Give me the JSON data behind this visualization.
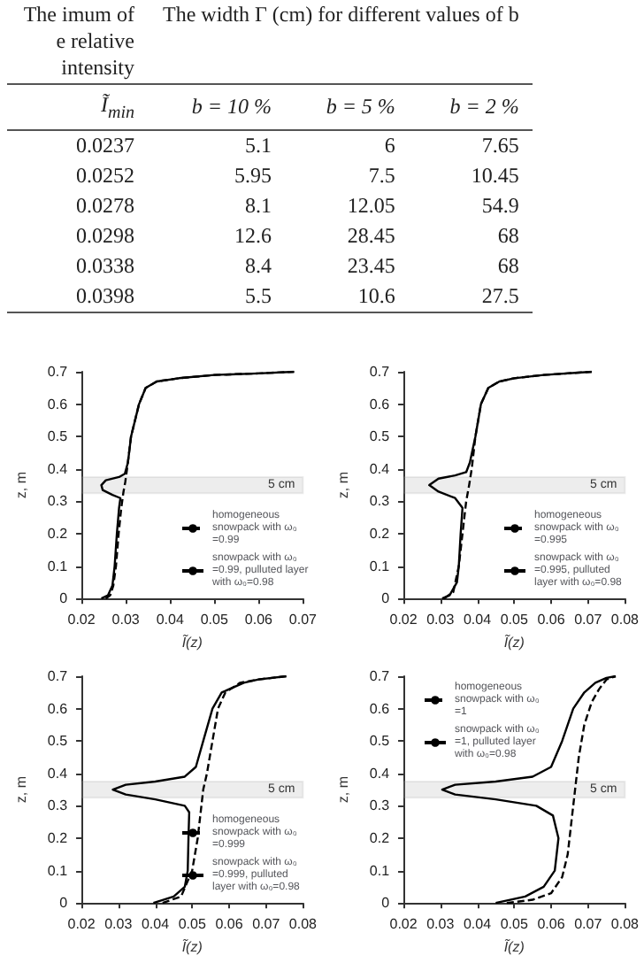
{
  "chart_data": [
    {
      "type": "other",
      "categories": [
        "Ĩ$_{min}$",
        "b = 10 %",
        "b = 5 %",
        "b = 2 %"
      ],
      "annotations": [
        "The imum of e relative intensity",
        "The width Γ (cm) for different values of b",
        "0.0237",
        "5.1",
        "6",
        "7.65",
        "0.0252",
        "5.95",
        "7.5",
        "10.45",
        "0.0278",
        "8.1",
        "12.05",
        "54.9",
        "0.0298",
        "12.6",
        "28.45",
        "68",
        "0.0338",
        "8.4",
        "23.45",
        "68",
        "0.0398",
        "5.5",
        "10.6",
        "27.5"
      ]
    },
    {
      "type": "line",
      "xlabel": "Ĩ(z)",
      "ylabel": "z, m",
      "xlim": [
        0.02,
        0.07
      ],
      "xticks": [
        0.02,
        0.03,
        0.04,
        0.05,
        0.06,
        0.07
      ],
      "ylim": [
        0,
        0.7
      ],
      "yticks": [
        0,
        0.1,
        0.2,
        0.3,
        0.4,
        0.5,
        0.6,
        0.7
      ],
      "legend": "bottom right",
      "marker": "none",
      "bands": [
        {
          "axis": "y",
          "from": 0.325,
          "to": 0.375,
          "label": "5 cm",
          "color": "#999999"
        }
      ],
      "series": [
        {
          "name": "homogeneous snowpack with ω₀=0.99",
          "color": "#000000",
          "line_style": "dashed",
          "x": [
            0.0255,
            0.0265,
            0.0272,
            0.0278,
            0.0284,
            0.029,
            0.0295,
            0.0299,
            0.0303,
            0.0312,
            0.033,
            0.0345,
            0.037,
            0.042,
            0.05,
            0.06,
            0.068
          ],
          "values": [
            0,
            0.01,
            0.04,
            0.1,
            0.2,
            0.28,
            0.33,
            0.36,
            0.4,
            0.5,
            0.6,
            0.65,
            0.67,
            0.68,
            0.69,
            0.695,
            0.7
          ]
        },
        {
          "name": "snowpack with ω₀=0.99, pulluted layer with ω₀=0.98",
          "color": "#000000",
          "line_style": "solid",
          "x": [
            0.0245,
            0.026,
            0.027,
            0.0275,
            0.028,
            0.0285,
            0.0288,
            0.027,
            0.0248,
            0.0245,
            0.0255,
            0.0285,
            0.0298,
            0.0305,
            0.0312,
            0.033,
            0.0345,
            0.037,
            0.042,
            0.05,
            0.06,
            0.068
          ],
          "values": [
            0,
            0.01,
            0.04,
            0.1,
            0.2,
            0.28,
            0.31,
            0.32,
            0.335,
            0.35,
            0.365,
            0.375,
            0.385,
            0.42,
            0.5,
            0.6,
            0.65,
            0.67,
            0.68,
            0.69,
            0.695,
            0.7
          ]
        }
      ]
    },
    {
      "type": "line",
      "xlabel": "Ĩ(z)",
      "ylabel": "z, m",
      "xlim": [
        0.02,
        0.08
      ],
      "xticks": [
        0.02,
        0.03,
        0.04,
        0.05,
        0.06,
        0.07,
        0.08
      ],
      "ylim": [
        0,
        0.7
      ],
      "yticks": [
        0,
        0.1,
        0.2,
        0.3,
        0.4,
        0.5,
        0.6,
        0.7
      ],
      "legend": "bottom right",
      "marker": "none",
      "bands": [
        {
          "axis": "y",
          "from": 0.325,
          "to": 0.375,
          "label": "5 cm",
          "color": "#999999"
        }
      ],
      "series": [
        {
          "name": "homogeneous snowpack with ω₀=0.995",
          "color": "#000000",
          "line_style": "dashed",
          "x": [
            0.031,
            0.0335,
            0.035,
            0.036,
            0.037,
            0.0378,
            0.0385,
            0.0395,
            0.041,
            0.043,
            0.046,
            0.05,
            0.058,
            0.071
          ],
          "values": [
            0,
            0.02,
            0.1,
            0.2,
            0.3,
            0.35,
            0.4,
            0.5,
            0.6,
            0.65,
            0.67,
            0.68,
            0.69,
            0.7
          ]
        },
        {
          "name": "snowpack with ω₀=0.995, pulluted layer with ω₀=0.98",
          "color": "#000000",
          "line_style": "solid",
          "x": [
            0.0305,
            0.0325,
            0.0345,
            0.035,
            0.0355,
            0.036,
            0.034,
            0.0295,
            0.027,
            0.0295,
            0.034,
            0.037,
            0.038,
            0.0395,
            0.041,
            0.043,
            0.046,
            0.05,
            0.058,
            0.071
          ],
          "values": [
            0,
            0.01,
            0.05,
            0.1,
            0.2,
            0.28,
            0.31,
            0.33,
            0.35,
            0.37,
            0.38,
            0.39,
            0.42,
            0.5,
            0.6,
            0.65,
            0.67,
            0.68,
            0.69,
            0.7
          ]
        }
      ]
    },
    {
      "type": "line",
      "xlabel": "Ĩ(z)",
      "ylabel": "z, m",
      "xlim": [
        0.02,
        0.08
      ],
      "xticks": [
        0.02,
        0.03,
        0.04,
        0.05,
        0.06,
        0.07,
        0.08
      ],
      "ylim": [
        0,
        0.7
      ],
      "yticks": [
        0,
        0.1,
        0.2,
        0.3,
        0.4,
        0.5,
        0.6,
        0.7
      ],
      "legend": "bottom right",
      "marker": "none",
      "bands": [
        {
          "axis": "y",
          "from": 0.325,
          "to": 0.375,
          "label": "5 cm",
          "color": "#999999"
        }
      ],
      "series": [
        {
          "name": "homogeneous snowpack with ω₀=0.999",
          "color": "#000000",
          "line_style": "dashed",
          "x": [
            0.042,
            0.047,
            0.05,
            0.0515,
            0.0525,
            0.053,
            0.054,
            0.0555,
            0.057,
            0.059,
            0.063,
            0.068,
            0.0755
          ],
          "values": [
            0,
            0.02,
            0.1,
            0.2,
            0.3,
            0.35,
            0.4,
            0.5,
            0.6,
            0.65,
            0.68,
            0.69,
            0.7
          ]
        },
        {
          "name": "snowpack with ω₀=0.999, pulluted layer with ω₀=0.98",
          "color": "#000000",
          "line_style": "solid",
          "x": [
            0.0395,
            0.045,
            0.048,
            0.0488,
            0.049,
            0.0492,
            0.048,
            0.04,
            0.032,
            0.0285,
            0.032,
            0.04,
            0.048,
            0.051,
            0.053,
            0.0555,
            0.058,
            0.064,
            0.068,
            0.0755
          ],
          "values": [
            0,
            0.02,
            0.05,
            0.1,
            0.2,
            0.28,
            0.3,
            0.32,
            0.335,
            0.35,
            0.365,
            0.375,
            0.39,
            0.42,
            0.5,
            0.6,
            0.65,
            0.68,
            0.69,
            0.7
          ]
        }
      ]
    },
    {
      "type": "line",
      "xlabel": "Ĩ(z)",
      "ylabel": "z, m",
      "xlim": [
        0.02,
        0.08
      ],
      "xticks": [
        0.02,
        0.03,
        0.04,
        0.05,
        0.06,
        0.07,
        0.08
      ],
      "ylim": [
        0,
        0.7
      ],
      "yticks": [
        0,
        0.1,
        0.2,
        0.3,
        0.4,
        0.5,
        0.6,
        0.7
      ],
      "legend": "top left",
      "marker": "none",
      "bands": [
        {
          "axis": "y",
          "from": 0.325,
          "to": 0.375,
          "label": "5 cm",
          "color": "#999999"
        }
      ],
      "series": [
        {
          "name": "homogeneous snowpack with ω₀=1",
          "color": "#000000",
          "line_style": "dashed",
          "x": [
            0.048,
            0.055,
            0.06,
            0.063,
            0.0645,
            0.0655,
            0.0665,
            0.0675,
            0.069,
            0.071,
            0.073,
            0.075,
            0.0775
          ],
          "values": [
            0,
            0.01,
            0.03,
            0.08,
            0.15,
            0.25,
            0.35,
            0.45,
            0.55,
            0.62,
            0.66,
            0.69,
            0.7
          ]
        },
        {
          "name": "snowpack with ω₀=1, pulluted layer with ω₀=0.98",
          "color": "#000000",
          "line_style": "solid",
          "x": [
            0.045,
            0.053,
            0.058,
            0.061,
            0.062,
            0.0605,
            0.056,
            0.045,
            0.034,
            0.0305,
            0.034,
            0.045,
            0.055,
            0.06,
            0.063,
            0.066,
            0.069,
            0.072,
            0.075,
            0.0775
          ],
          "values": [
            0,
            0.02,
            0.05,
            0.1,
            0.2,
            0.27,
            0.3,
            0.32,
            0.335,
            0.35,
            0.365,
            0.375,
            0.39,
            0.42,
            0.5,
            0.6,
            0.65,
            0.68,
            0.695,
            0.7
          ]
        }
      ]
    }
  ]
}
